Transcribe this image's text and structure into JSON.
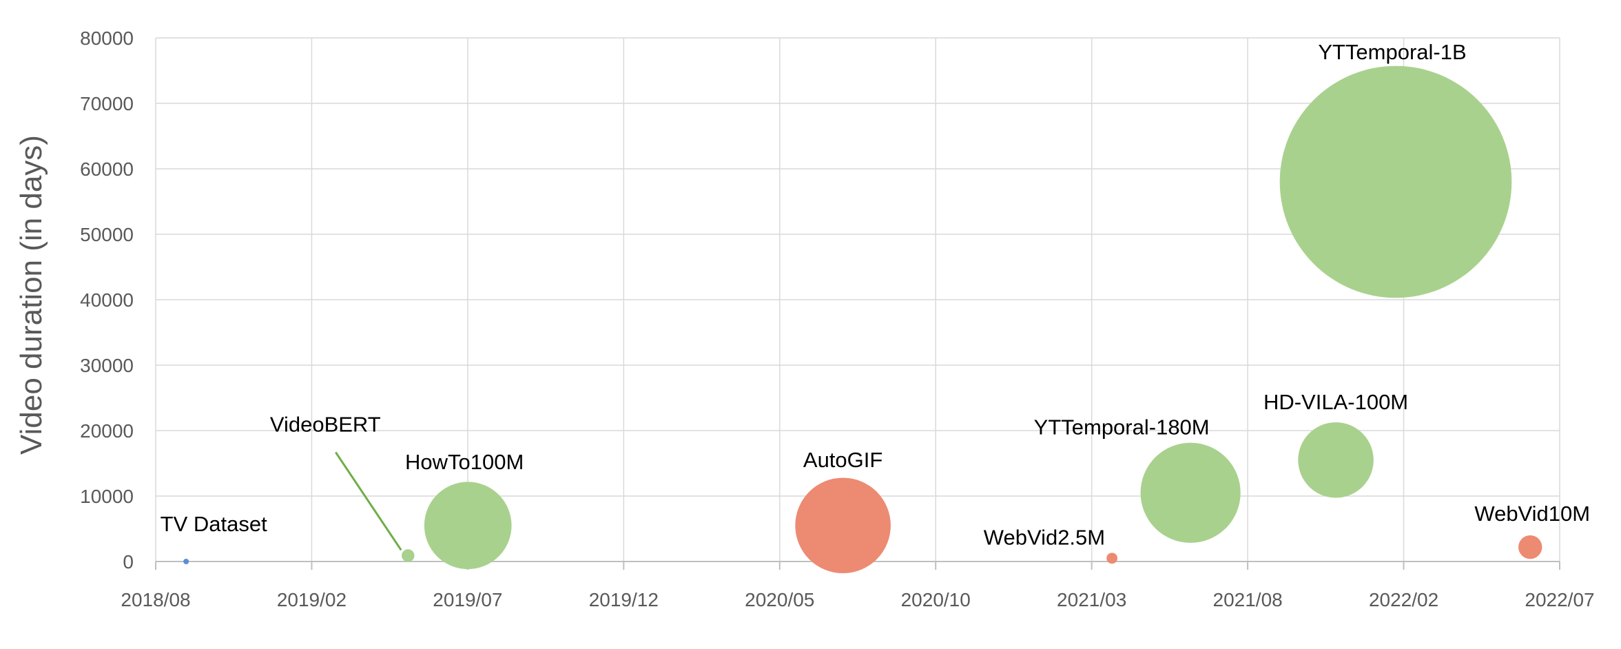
{
  "chart_data": {
    "type": "scatter",
    "subtype": "bubble",
    "title": "",
    "xlabel": "",
    "ylabel": "Video duration (in days)",
    "x_tick_labels": [
      "2018/08",
      "2019/02",
      "2019/07",
      "2019/12",
      "2020/05",
      "2020/10",
      "2021/03",
      "2021/08",
      "2022/02",
      "2022/07"
    ],
    "xlim": [
      "2018-08-01",
      "2022-07-01"
    ],
    "y_ticks": [
      0,
      10000,
      20000,
      30000,
      40000,
      50000,
      60000,
      70000,
      80000
    ],
    "ylim": [
      0,
      80000
    ],
    "grid": true,
    "legend": "none",
    "colors": {
      "green": "#a9d18e",
      "red": "#ed8a72",
      "blue": "#5b8ed6",
      "leader_line": "#70ad47"
    },
    "points": [
      {
        "label": "TV Dataset",
        "x": "2018-09-01",
        "y": 0,
        "size": 0.6,
        "color": "blue"
      },
      {
        "label": "VideoBERT",
        "x": "2019-04-15",
        "y": 900,
        "size": 1.4,
        "color": "green"
      },
      {
        "label": "HowTo100M",
        "x": "2019-06-15",
        "y": 5500,
        "size": 9.6,
        "color": "green"
      },
      {
        "label": "AutoGIF",
        "x": "2020-07-01",
        "y": 5500,
        "size": 10.5,
        "color": "red"
      },
      {
        "label": "WebVid2.5M",
        "x": "2021-04-01",
        "y": 500,
        "size": 1.2,
        "color": "red"
      },
      {
        "label": "YTTemporal-180M",
        "x": "2021-06-20",
        "y": 10500,
        "size": 11.0,
        "color": "green"
      },
      {
        "label": "HD-VILA-100M",
        "x": "2021-11-15",
        "y": 15500,
        "size": 8.3,
        "color": "green"
      },
      {
        "label": "YTTemporal-1B",
        "x": "2022-01-15",
        "y": 58000,
        "size": 25.5,
        "color": "green"
      },
      {
        "label": "WebVid10M",
        "x": "2022-06-01",
        "y": 2200,
        "size": 2.6,
        "color": "red"
      }
    ]
  }
}
